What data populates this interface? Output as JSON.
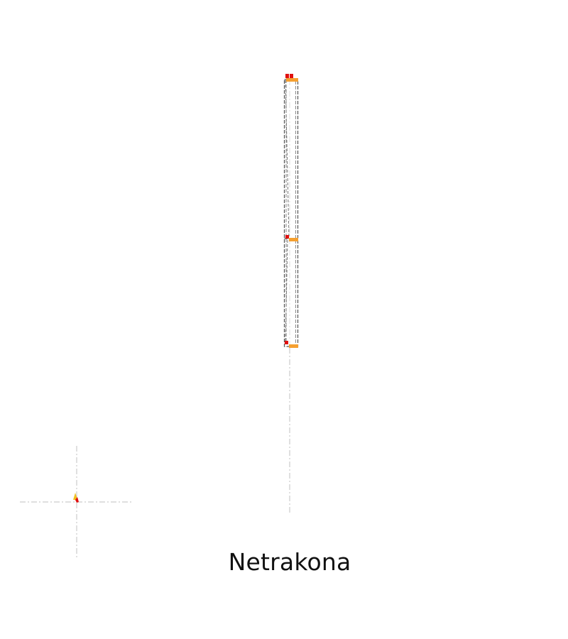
{
  "label": "Netrakona",
  "colors": {
    "background": "#ffffff",
    "outline": "#555555",
    "outline_light": "#8a8a8a",
    "axis_guide": "#cccccc",
    "marker_red": "#e01010",
    "marker_orange": "#f5a030",
    "marker_yellow": "#f0c020"
  }
}
